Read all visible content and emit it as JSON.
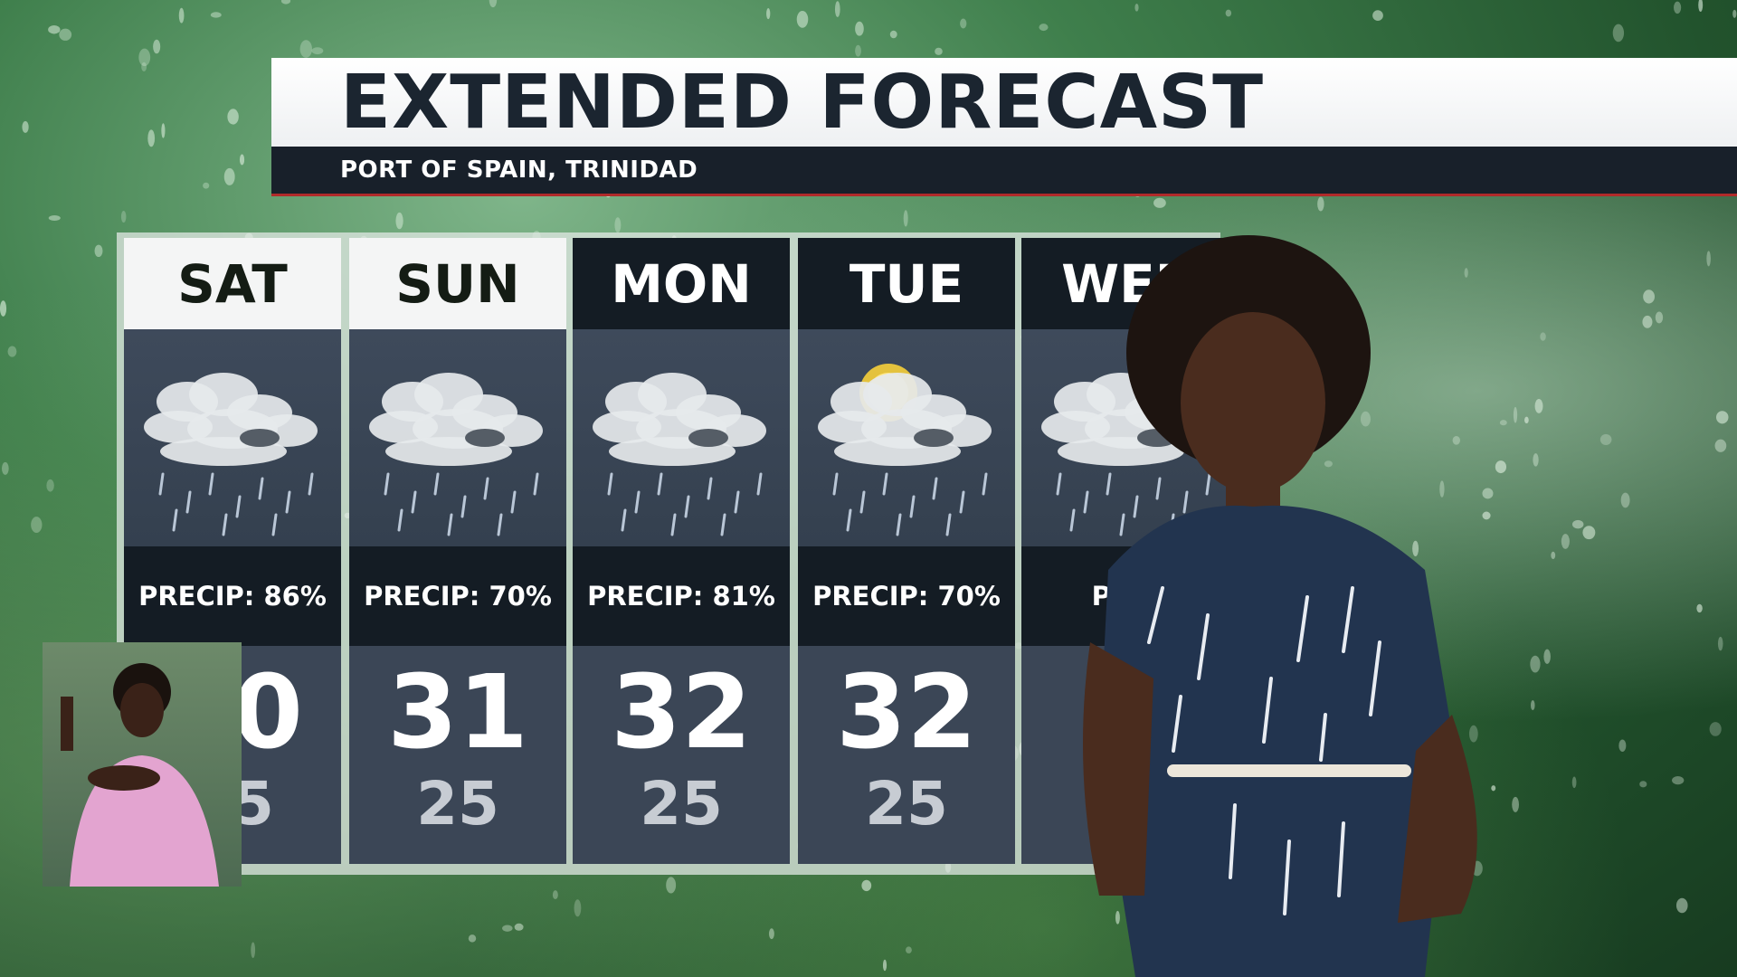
{
  "header": {
    "title": "EXTENDED FORECAST",
    "location": "PORT OF SPAIN, TRINIDAD"
  },
  "colors": {
    "header_dark": "#18202a",
    "accent_red": "#b02a2a",
    "panel": "#3b4656"
  },
  "days": [
    {
      "day": "SAT",
      "icon": "cloud-rain-icon",
      "precip": "PRECIP: 86%",
      "hi": "30",
      "lo": "25",
      "active": true
    },
    {
      "day": "SUN",
      "icon": "cloud-rain-icon",
      "precip": "PRECIP: 70%",
      "hi": "31",
      "lo": "25",
      "active": true
    },
    {
      "day": "MON",
      "icon": "cloud-rain-icon",
      "precip": "PRECIP: 81%",
      "hi": "32",
      "lo": "25",
      "active": false
    },
    {
      "day": "TUE",
      "icon": "sun-cloud-rain-icon",
      "precip": "PRECIP: 70%",
      "hi": "32",
      "lo": "25",
      "active": false
    },
    {
      "day": "WED",
      "icon": "cloud-rain-icon",
      "precip": "PREC",
      "active": false
    }
  ]
}
